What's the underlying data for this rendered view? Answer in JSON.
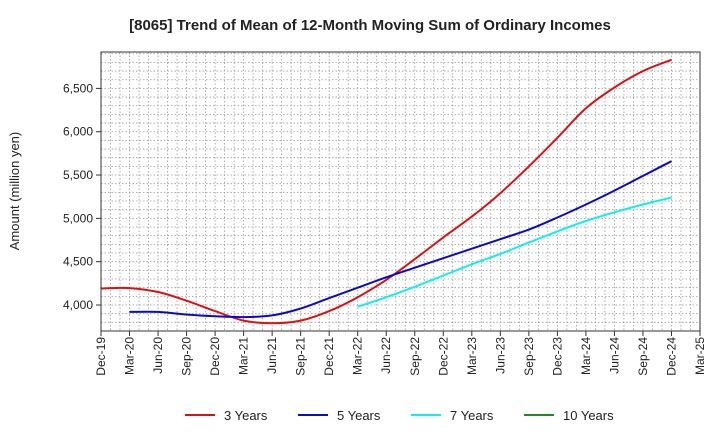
{
  "chart_data": {
    "type": "line",
    "title": "[8065]  Trend of Mean of 12-Month Moving Sum of Ordinary Incomes",
    "xlabel": "",
    "ylabel": "Amount (million yen)",
    "ylim": [
      3700,
      6920
    ],
    "yticks": [
      4000,
      4500,
      5000,
      5500,
      6000,
      6500
    ],
    "ytick_labels": [
      "4,000",
      "4,500",
      "5,000",
      "5,500",
      "6,000",
      "6,500"
    ],
    "categories": [
      "Dec-19",
      "Mar-20",
      "Jun-20",
      "Sep-20",
      "Dec-20",
      "Mar-21",
      "Jun-21",
      "Sep-21",
      "Dec-21",
      "Mar-22",
      "Jun-22",
      "Sep-22",
      "Dec-22",
      "Mar-23",
      "Jun-23",
      "Sep-23",
      "Dec-23",
      "Mar-24",
      "Jun-24",
      "Sep-24",
      "Dec-24",
      "Mar-25"
    ],
    "grid": true,
    "legend_position": "bottom",
    "series": [
      {
        "name": "3 Years",
        "color": "#dd1111",
        "values": [
          4190,
          4195,
          4150,
          4050,
          3930,
          3820,
          3790,
          3820,
          3930,
          4090,
          4290,
          4530,
          4780,
          5020,
          5290,
          5600,
          5930,
          6270,
          6510,
          6700,
          6830,
          null
        ]
      },
      {
        "name": "5 Years",
        "color": "#0a0acc",
        "values": [
          null,
          3920,
          3920,
          3890,
          3870,
          3860,
          3880,
          3960,
          4080,
          4200,
          4320,
          4430,
          4540,
          4650,
          4760,
          4870,
          5010,
          5160,
          5320,
          5490,
          5660,
          null
        ]
      },
      {
        "name": "7 Years",
        "color": "#11eeee",
        "values": [
          null,
          null,
          null,
          null,
          null,
          null,
          null,
          null,
          null,
          3980,
          4090,
          4210,
          4340,
          4470,
          4590,
          4720,
          4850,
          4970,
          5070,
          5160,
          5240,
          null
        ]
      },
      {
        "name": "10 Years",
        "color": "#228822",
        "values": [
          null,
          null,
          null,
          null,
          null,
          null,
          null,
          null,
          null,
          null,
          null,
          null,
          null,
          null,
          null,
          null,
          null,
          null,
          null,
          null,
          null,
          null
        ]
      }
    ]
  }
}
